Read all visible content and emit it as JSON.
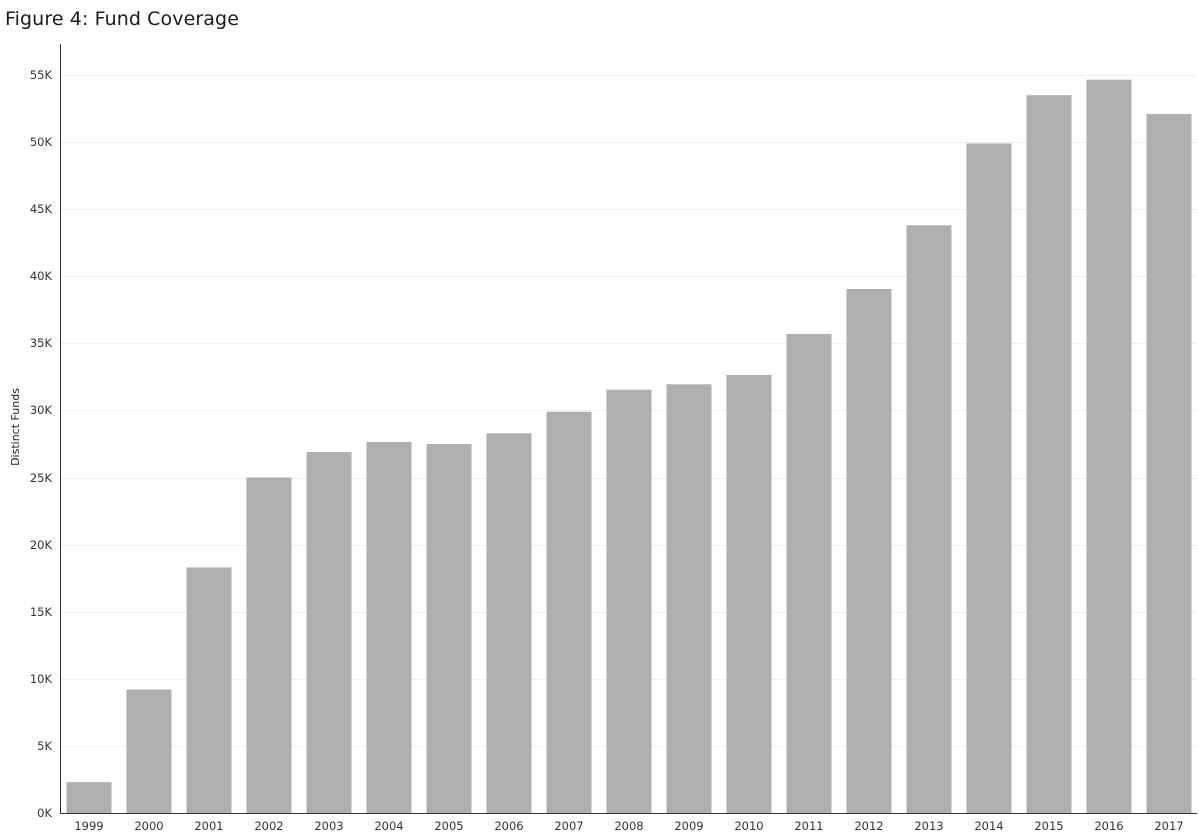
{
  "chart_data": {
    "type": "bar",
    "title": "Figure 4: Fund Coverage",
    "xlabel": "",
    "ylabel": "Distinct Funds",
    "categories": [
      "1999",
      "2000",
      "2001",
      "2002",
      "2003",
      "2004",
      "2005",
      "2006",
      "2007",
      "2008",
      "2009",
      "2010",
      "2011",
      "2012",
      "2013",
      "2014",
      "2015",
      "2016",
      "2017"
    ],
    "values": [
      2300,
      9200,
      18300,
      25000,
      26900,
      27650,
      27500,
      28300,
      29900,
      31550,
      31950,
      32650,
      35700,
      39050,
      43800,
      49900,
      53500,
      54650,
      52100
    ],
    "ylim": [
      0,
      55000
    ],
    "yticks": [
      0,
      5000,
      10000,
      15000,
      20000,
      25000,
      30000,
      35000,
      40000,
      45000,
      50000,
      55000
    ],
    "ytick_labels": [
      "0K",
      "5K",
      "10K",
      "15K",
      "20K",
      "25K",
      "30K",
      "35K",
      "40K",
      "45K",
      "50K",
      "55K"
    ],
    "grid": true,
    "colors": {
      "bar": "#afafaf",
      "grid": "#eeeeee",
      "axis": "#333333"
    }
  }
}
